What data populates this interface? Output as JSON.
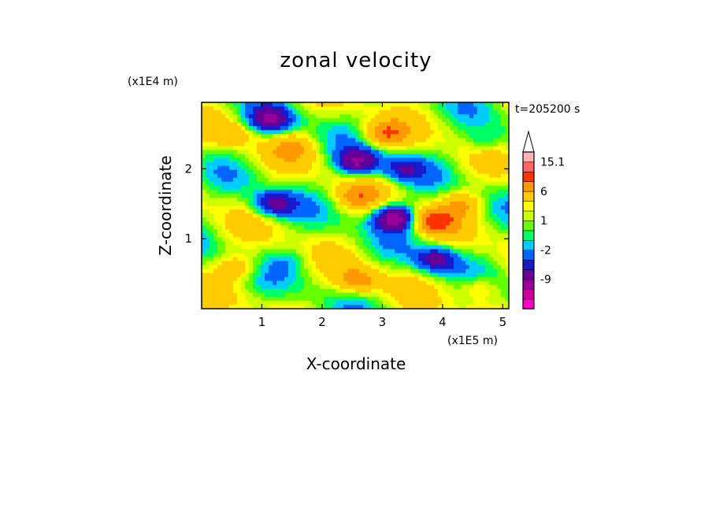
{
  "chart_data": {
    "type": "heatmap",
    "title": "zonal velocity",
    "xlabel": "X-coordinate",
    "ylabel": "Z-coordinate",
    "x_unit": "(x1E5 m)",
    "y_unit": "(x1E4 m)",
    "time_label": "t=205200 s",
    "xlim": [
      0,
      5.1
    ],
    "ylim": [
      0,
      2.95
    ],
    "x_ticks": [
      1,
      2,
      3,
      4,
      5
    ],
    "x_tick_labels": [
      "1",
      "2",
      "3",
      "4",
      "5"
    ],
    "y_ticks": [
      1,
      2
    ],
    "y_tick_labels": [
      "1",
      "2"
    ],
    "colorbar": {
      "levels": [
        -15,
        -12,
        -9,
        -6,
        -4,
        -2,
        -1,
        0,
        1,
        2,
        3,
        6,
        9,
        12,
        15.1
      ],
      "colors": [
        "#ff00cc",
        "#cc0099",
        "#990099",
        "#660099",
        "#1a1acc",
        "#0066ff",
        "#00ccff",
        "#00ff66",
        "#66ff00",
        "#ccff00",
        "#ffff00",
        "#ffcc00",
        "#ff9900",
        "#ff3300",
        "#ff6666",
        "#ffb3b3",
        "#ffffff"
      ],
      "tick_labels": [
        "15.1",
        "6",
        "1",
        "-2",
        "-9"
      ],
      "tick_values": [
        15.1,
        6,
        1,
        -2,
        -9
      ]
    },
    "field_features": [
      {
        "x": 1.15,
        "z": 2.7,
        "value": -9
      },
      {
        "x": 0.5,
        "z": 2.5,
        "value": 3
      },
      {
        "x": 1.5,
        "z": 2.3,
        "value": 4
      },
      {
        "x": 2.6,
        "z": 2.1,
        "value": -10
      },
      {
        "x": 3.05,
        "z": 2.5,
        "value": 7
      },
      {
        "x": 3.35,
        "z": 2.0,
        "value": -6
      },
      {
        "x": 1.2,
        "z": 1.5,
        "value": -8
      },
      {
        "x": 2.6,
        "z": 1.6,
        "value": 5
      },
      {
        "x": 3.2,
        "z": 1.3,
        "value": -12
      },
      {
        "x": 3.85,
        "z": 1.25,
        "value": 8
      },
      {
        "x": 4.3,
        "z": 1.5,
        "value": 5
      },
      {
        "x": 3.9,
        "z": 0.7,
        "value": -8
      },
      {
        "x": 2.6,
        "z": 0.4,
        "value": 6
      },
      {
        "x": 1.5,
        "z": 0.7,
        "value": -2
      },
      {
        "x": 0.6,
        "z": 0.6,
        "value": 4
      },
      {
        "x": 4.7,
        "z": 2.4,
        "value": -3
      },
      {
        "x": 4.6,
        "z": 0.3,
        "value": 4
      }
    ]
  }
}
